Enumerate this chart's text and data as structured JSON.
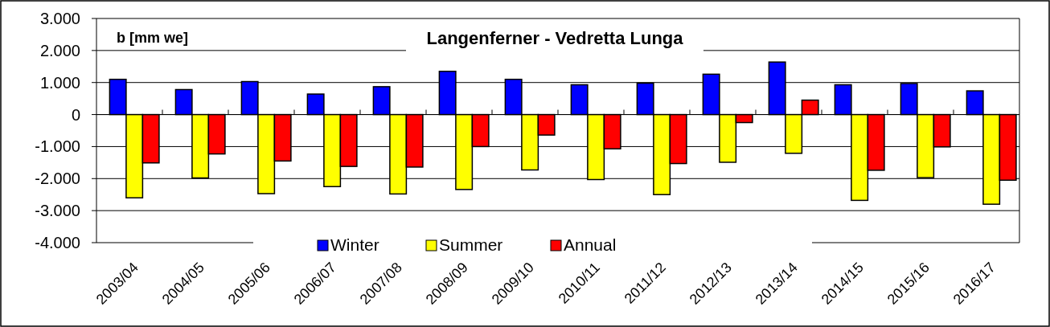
{
  "chart_data": {
    "type": "bar",
    "title": "Langenferner - Vedretta Lunga",
    "ylabel": "b [mm we]",
    "categories": [
      "2003/04",
      "2004/05",
      "2005/06",
      "2006/07",
      "2007/08",
      "2008/09",
      "2009/10",
      "2010/11",
      "2011/12",
      "2012/13",
      "2013/14",
      "2014/15",
      "2015/16",
      "2016/17"
    ],
    "series": [
      {
        "name": "Winter",
        "color": "#0000ff",
        "values": [
          1100,
          780,
          1030,
          640,
          870,
          1350,
          1100,
          930,
          980,
          1260,
          1640,
          930,
          970,
          740
        ]
      },
      {
        "name": "Summer",
        "color": "#ffff00",
        "values": [
          -2600,
          -1980,
          -2470,
          -2250,
          -2480,
          -2340,
          -1730,
          -2030,
          -2500,
          -1490,
          -1210,
          -2680,
          -1970,
          -2800
        ]
      },
      {
        "name": "Annual",
        "color": "#ff0000",
        "values": [
          -1510,
          -1230,
          -1450,
          -1620,
          -1640,
          -1000,
          -640,
          -1070,
          -1530,
          -250,
          450,
          -1740,
          -1010,
          -2050
        ]
      }
    ],
    "ylim": [
      -4000,
      3000
    ],
    "yticks": [
      {
        "value": -4000,
        "label": "-4.000"
      },
      {
        "value": -3000,
        "label": "-3.000"
      },
      {
        "value": -2000,
        "label": "-2.000"
      },
      {
        "value": -1000,
        "label": "-1.000"
      },
      0,
      {
        "value": 1000,
        "label": "1.000"
      },
      {
        "value": 2000,
        "label": "2.000"
      },
      {
        "value": 3000,
        "label": "3.000"
      }
    ],
    "grid": "y",
    "legend": "bottom"
  }
}
